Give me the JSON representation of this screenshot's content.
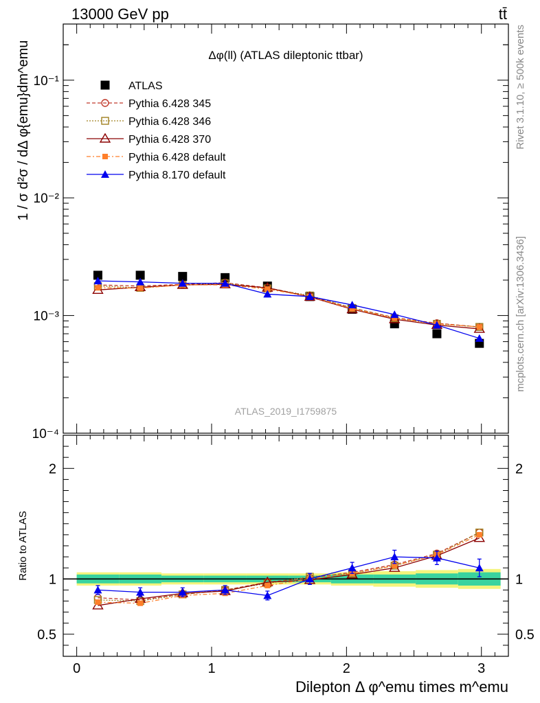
{
  "header": {
    "left": "13000 GeV pp",
    "right": "tt̄"
  },
  "side_labels": {
    "rivet": "Rivet 3.1.10, ≥ 500k events",
    "mcplots": "mcplots.cern.ch [arXiv:1306.3436]"
  },
  "colors": {
    "ATLAS": "#000000",
    "Pythia 6.428 345": "#c0392b",
    "Pythia 6.428 346": "#a08020",
    "Pythia 6.428 370": "#8b0000",
    "Pythia 6.428 default": "#ff7f2a",
    "Pythia 8.170 default": "#0000ee",
    "band_inner": "#39d39f",
    "band_outer": "#f4f47c"
  },
  "chart_data": [
    {
      "type": "line",
      "title": "Δφ(ll) (ATLAS dileptonic ttbar)",
      "watermark": "ATLAS_2019_I1759875",
      "ylabel": "1 / σ  d²σ / dΔ φ{emu}dm^emu",
      "yscale": "log",
      "ylim": [
        0.0001,
        0.3
      ],
      "xlim": [
        -0.1,
        3.2
      ],
      "y_tick_labels": [
        "10⁻⁴",
        "10⁻³",
        "10⁻²",
        "10⁻¹"
      ],
      "legend_position": "top-left",
      "x": [
        0.157,
        0.471,
        0.785,
        1.1,
        1.414,
        1.728,
        2.042,
        2.356,
        2.67,
        2.985
      ],
      "series": [
        {
          "name": "ATLAS",
          "marker": "square",
          "values": [
            0.0022,
            0.0022,
            0.00215,
            0.0021,
            0.00178,
            0.00145,
            0.00113,
            0.00085,
            0.0007,
            0.00058
          ]
        },
        {
          "name": "Pythia 6.428 345",
          "marker": "circle-open",
          "dash": "dashed",
          "values": [
            0.00182,
            0.00178,
            0.00184,
            0.0019,
            0.00172,
            0.00146,
            0.00116,
            0.00096,
            0.00086,
            0.0008
          ]
        },
        {
          "name": "Pythia 6.428 346",
          "marker": "square-open",
          "dash": "dotted",
          "values": [
            0.00178,
            0.00172,
            0.00182,
            0.00188,
            0.0017,
            0.00148,
            0.00116,
            0.00095,
            0.00085,
            0.0008
          ]
        },
        {
          "name": "Pythia 6.428 370",
          "marker": "triangle-open",
          "dash": "solid",
          "values": [
            0.00165,
            0.00174,
            0.00182,
            0.00184,
            0.00172,
            0.00144,
            0.00113,
            0.00093,
            0.00083,
            0.00077
          ]
        },
        {
          "name": "Pythia 6.428 default",
          "marker": "square-small",
          "dash": "dashdot",
          "values": [
            0.00172,
            0.00171,
            0.00182,
            0.00182,
            0.00168,
            0.00145,
            0.00114,
            0.00095,
            0.00085,
            0.0008
          ]
        },
        {
          "name": "Pythia 8.170 default",
          "marker": "triangle",
          "dash": "solid",
          "values": [
            0.00197,
            0.00193,
            0.00188,
            0.00188,
            0.00152,
            0.00145,
            0.00123,
            0.00102,
            0.00083,
            0.00064
          ]
        }
      ]
    },
    {
      "type": "line",
      "ylabel": "Ratio to ATLAS",
      "xlabel": "Dilepton Δ φ^emu times m^emu",
      "ylim": [
        0.3,
        2.3
      ],
      "xlim": [
        -0.1,
        3.2
      ],
      "y_tick_labels": [
        "0.5",
        "1",
        "2"
      ],
      "x_tick_labels": [
        "0",
        "1",
        "2",
        "3"
      ],
      "reference_line": 1,
      "band_inner": [
        0.04,
        0.04,
        0.03,
        0.03,
        0.03,
        0.03,
        0.04,
        0.04,
        0.05,
        0.06
      ],
      "band_outer": [
        0.06,
        0.06,
        0.05,
        0.05,
        0.05,
        0.05,
        0.06,
        0.07,
        0.08,
        0.09
      ],
      "x": [
        0.157,
        0.471,
        0.785,
        1.1,
        1.414,
        1.728,
        2.042,
        2.356,
        2.67,
        2.985
      ],
      "series": [
        {
          "name": "Pythia 6.428 345",
          "values": [
            0.83,
            0.81,
            0.86,
            0.9,
            0.97,
            1.01,
            1.06,
            1.13,
            1.23,
            1.42
          ]
        },
        {
          "name": "Pythia 6.428 346",
          "values": [
            0.81,
            0.8,
            0.86,
            0.9,
            0.96,
            1.02,
            1.05,
            1.12,
            1.22,
            1.42
          ]
        },
        {
          "name": "Pythia 6.428 370",
          "values": [
            0.76,
            0.82,
            0.87,
            0.89,
            0.97,
            0.99,
            1.04,
            1.1,
            1.21,
            1.37
          ]
        },
        {
          "name": "Pythia 6.428 default",
          "values": [
            0.79,
            0.78,
            0.85,
            0.87,
            0.94,
            1.0,
            1.05,
            1.12,
            1.22,
            1.4
          ]
        },
        {
          "name": "Pythia 8.170 default",
          "values": [
            0.9,
            0.88,
            0.88,
            0.9,
            0.85,
            1.0,
            1.1,
            1.2,
            1.19,
            1.1
          ],
          "errors": [
            0.04,
            0.04,
            0.04,
            0.04,
            0.04,
            0.05,
            0.05,
            0.06,
            0.06,
            0.08
          ]
        }
      ]
    }
  ]
}
